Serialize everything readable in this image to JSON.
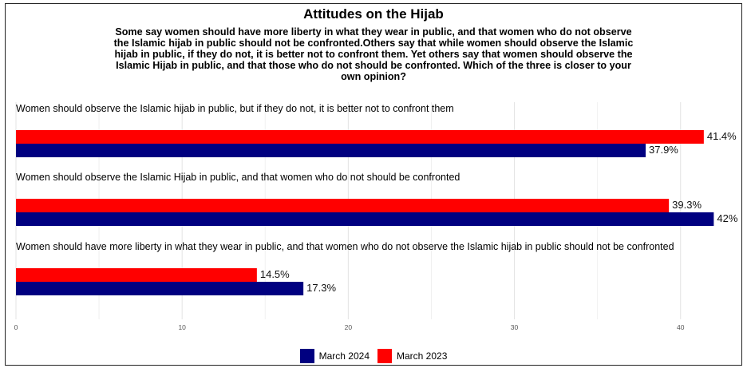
{
  "chart_data": {
    "type": "bar",
    "orientation": "horizontal",
    "title": "Attitudes on the Hijab",
    "subtitle": "Some say women should have more liberty in what they wear in public, and that women who do not observe the Islamic hijab in public should not be confronted.Others say that while women should observe the Islamic hijab in public, if they do not, it is better not to confront them.  Yet others say that women should observe the Islamic Hijab in public, and that those who do not should be confronted. Which of the three is closer to your own opinion?",
    "categories": [
      "Women should observe the Islamic hijab in public, but if they do not, it is better not to confront them",
      "Women should observe the Islamic Hijab in public, and that women who do not should be confronted",
      "Women should have more liberty in what they wear in public, and that women who do not observe the Islamic hijab in public should not be confronted"
    ],
    "series": [
      {
        "name": "March 2023",
        "color": "#ff0000",
        "values": [
          41.4,
          39.3,
          14.5
        ],
        "labels": [
          "41.4%",
          "39.3%",
          "14.5%"
        ]
      },
      {
        "name": "March 2024",
        "color": "#000080",
        "values": [
          37.9,
          42,
          17.3
        ],
        "labels": [
          "37.9%",
          "42%",
          "17.3%"
        ]
      }
    ],
    "xlim": [
      0,
      44
    ],
    "x_ticks": [
      0,
      10,
      20,
      30,
      40
    ],
    "x_tick_labels": [
      "0",
      "10",
      "20",
      "30",
      "40"
    ],
    "grid": true,
    "legend_position": "bottom",
    "legend": [
      {
        "name": "March 2024",
        "color": "#000080"
      },
      {
        "name": "March 2023",
        "color": "#ff0000"
      }
    ]
  }
}
